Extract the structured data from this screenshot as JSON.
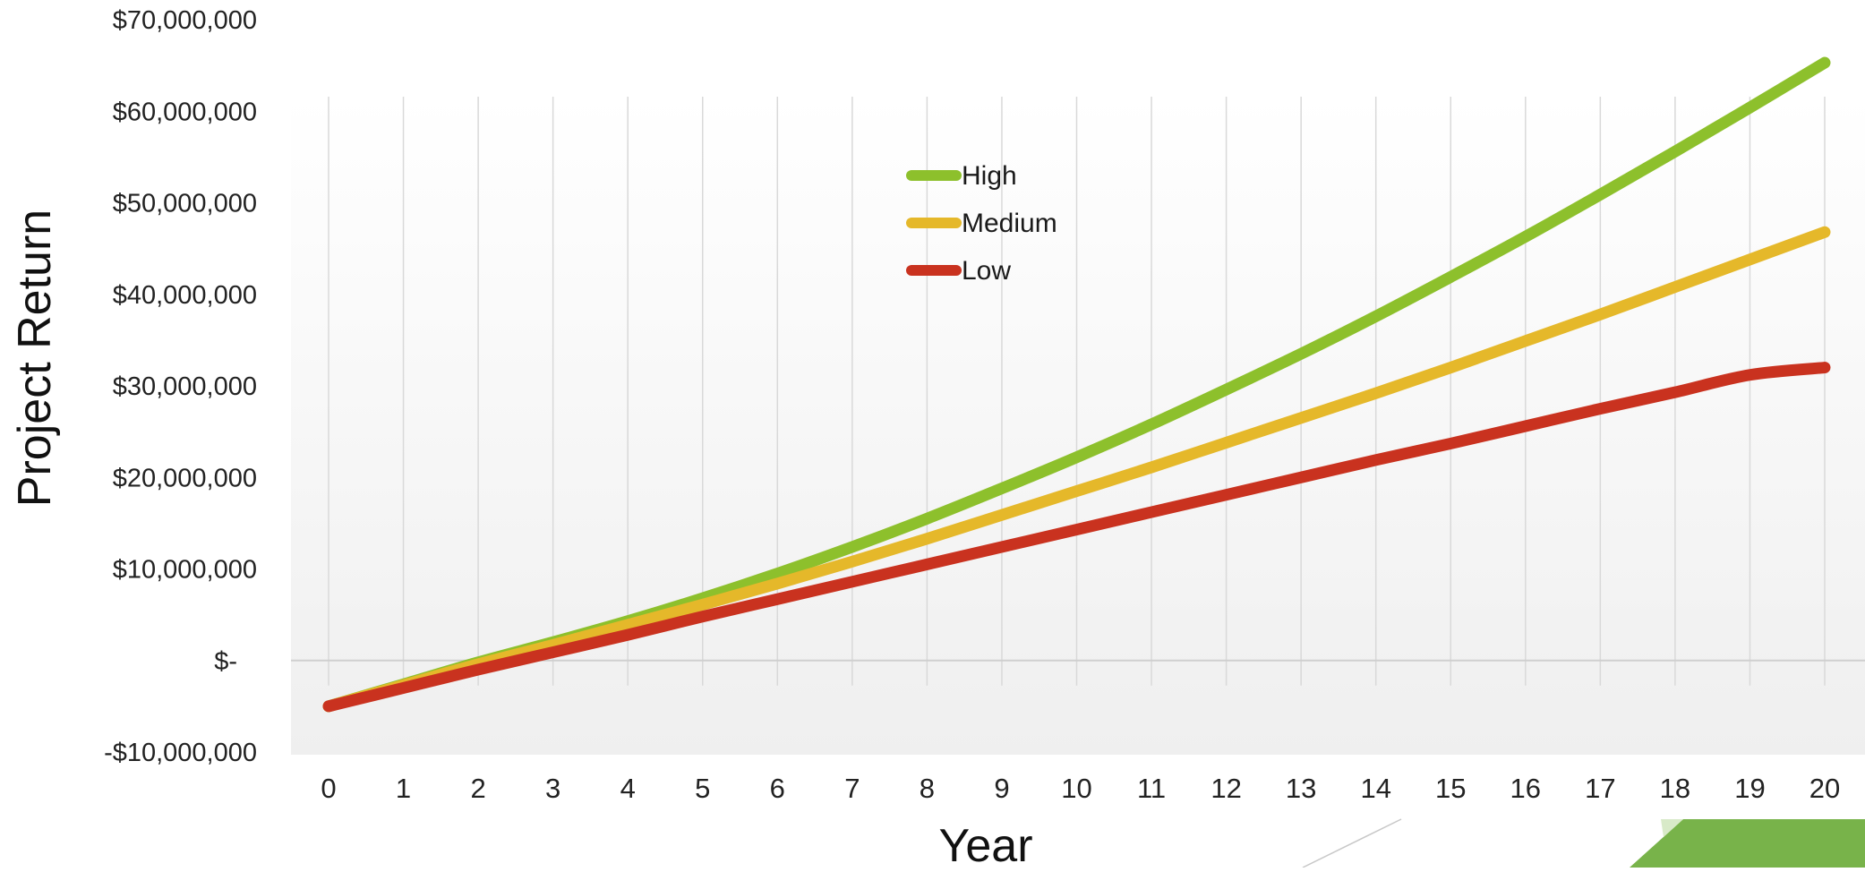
{
  "chart_data": {
    "type": "line",
    "title": "",
    "xlabel": "Year",
    "ylabel": "Project Return",
    "x": [
      0,
      1,
      2,
      3,
      4,
      5,
      6,
      7,
      8,
      9,
      10,
      11,
      12,
      13,
      14,
      15,
      16,
      17,
      18,
      19,
      20
    ],
    "ylim": [
      -10000000,
      70000000
    ],
    "xlim": [
      0,
      20
    ],
    "y_ticks": [
      {
        "value": 70000000,
        "label": "$70,000,000"
      },
      {
        "value": 60000000,
        "label": "$60,000,000"
      },
      {
        "value": 50000000,
        "label": "$50,000,000"
      },
      {
        "value": 40000000,
        "label": "$40,000,000"
      },
      {
        "value": 30000000,
        "label": "$30,000,000"
      },
      {
        "value": 20000000,
        "label": "$20,000,000"
      },
      {
        "value": 10000000,
        "label": "$10,000,000"
      },
      {
        "value": 0,
        "label": "$-"
      },
      {
        "value": -10000000,
        "label": "-$10,000,000"
      }
    ],
    "grid": "vertical",
    "legend_position": "top-center",
    "series": [
      {
        "name": "High",
        "color": "#8dc02c",
        "values": [
          -5000000,
          -2600000,
          -200000,
          2000000,
          4300000,
          6800000,
          9500000,
          12400000,
          15500000,
          18800000,
          22200000,
          25800000,
          29600000,
          33500000,
          37600000,
          41900000,
          46300000,
          50900000,
          55600000,
          60400000,
          65300000
        ]
      },
      {
        "name": "Medium",
        "color": "#e5b82a",
        "values": [
          -5000000,
          -2700000,
          -400000,
          1700000,
          3900000,
          6100000,
          8400000,
          10800000,
          13300000,
          15900000,
          18500000,
          21100000,
          23800000,
          26500000,
          29200000,
          32000000,
          34900000,
          37800000,
          40800000,
          43800000,
          46800000
        ]
      },
      {
        "name": "Low",
        "color": "#c9321f",
        "values": [
          -5000000,
          -3000000,
          -1000000,
          900000,
          2800000,
          4800000,
          6700000,
          8600000,
          10500000,
          12400000,
          14300000,
          16200000,
          18100000,
          20000000,
          21900000,
          23700000,
          25600000,
          27500000,
          29300000,
          31200000,
          32000000
        ]
      }
    ]
  },
  "colors": {
    "grid": "#d9d9d9",
    "zero_line": "#cfcfcf",
    "plot_bg_top": "#ffffff",
    "plot_bg_bottom": "#f0f0f0",
    "accent_green": "#78b34a"
  }
}
